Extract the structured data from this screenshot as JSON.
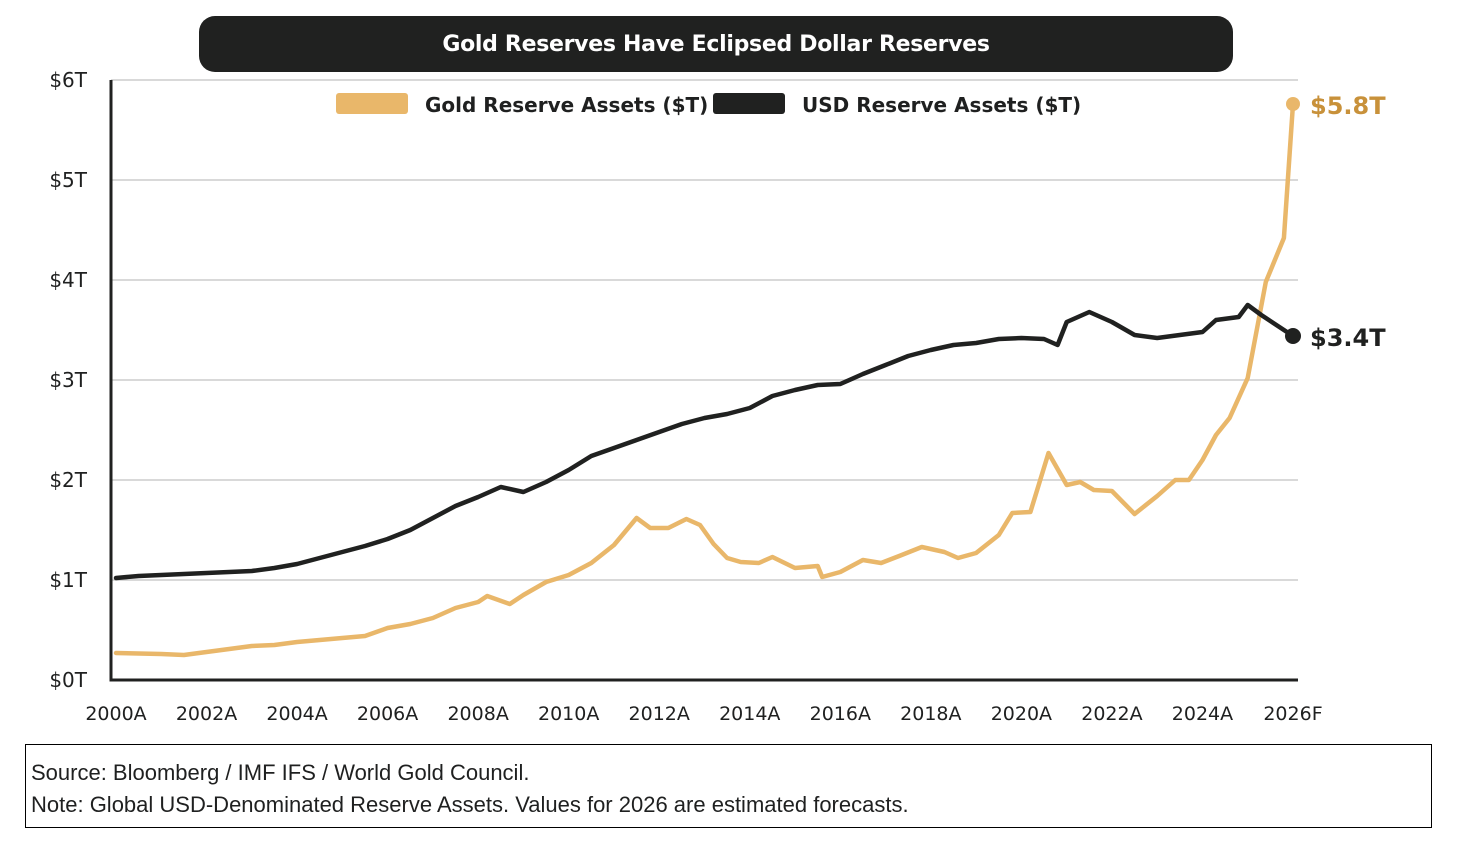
{
  "chart_data": {
    "type": "line",
    "title": "Gold Reserves Have Eclipsed Dollar Reserves",
    "xlabel": "",
    "ylabel": "",
    "xlim": [
      2000,
      2026
    ],
    "ylim": [
      0,
      6
    ],
    "grid": true,
    "legend_position": "top-center",
    "y_ticks": [
      {
        "value": 0,
        "label": "$0T"
      },
      {
        "value": 1,
        "label": "$1T"
      },
      {
        "value": 2,
        "label": "$2T"
      },
      {
        "value": 3,
        "label": "$3T"
      },
      {
        "value": 4,
        "label": "$4T"
      },
      {
        "value": 5,
        "label": "$5T"
      },
      {
        "value": 6,
        "label": "$6T"
      }
    ],
    "x_ticks": [
      {
        "value": 2000,
        "label": "2000A"
      },
      {
        "value": 2002,
        "label": "2002A"
      },
      {
        "value": 2004,
        "label": "2004A"
      },
      {
        "value": 2006,
        "label": "2006A"
      },
      {
        "value": 2008,
        "label": "2008A"
      },
      {
        "value": 2010,
        "label": "2010A"
      },
      {
        "value": 2012,
        "label": "2012A"
      },
      {
        "value": 2014,
        "label": "2014A"
      },
      {
        "value": 2016,
        "label": "2016A"
      },
      {
        "value": 2018,
        "label": "2018A"
      },
      {
        "value": 2020,
        "label": "2020A"
      },
      {
        "value": 2022,
        "label": "2022A"
      },
      {
        "value": 2024,
        "label": "2024A"
      },
      {
        "value": 2026,
        "label": "2026F"
      }
    ],
    "series": [
      {
        "name": "Gold Reserve Assets ($T)",
        "color": "#e9b76a",
        "end_label": "$5.8T",
        "end_label_color": "#c8913a",
        "x": [
          2000,
          2001,
          2001.5,
          2002,
          2002.5,
          2003,
          2003.5,
          2004,
          2004.5,
          2005,
          2005.5,
          2006,
          2006.5,
          2007,
          2007.5,
          2008,
          2008.2,
          2008.7,
          2009,
          2009.5,
          2010,
          2010.5,
          2011,
          2011.5,
          2011.8,
          2012.2,
          2012.6,
          2012.9,
          2013.2,
          2013.5,
          2013.8,
          2014.2,
          2014.5,
          2015,
          2015.5,
          2015.6,
          2016,
          2016.5,
          2016.9,
          2017.3,
          2017.8,
          2018.3,
          2018.6,
          2019,
          2019.5,
          2019.8,
          2020.2,
          2020.6,
          2021,
          2021.3,
          2021.6,
          2022,
          2022.5,
          2023,
          2023.4,
          2023.7,
          2024,
          2024.3,
          2024.6,
          2025,
          2025.4,
          2025.8,
          2026
        ],
        "values": [
          0.27,
          0.26,
          0.25,
          0.28,
          0.31,
          0.34,
          0.35,
          0.38,
          0.4,
          0.42,
          0.44,
          0.52,
          0.56,
          0.62,
          0.72,
          0.78,
          0.84,
          0.76,
          0.85,
          0.98,
          1.05,
          1.17,
          1.35,
          1.62,
          1.52,
          1.52,
          1.61,
          1.55,
          1.36,
          1.22,
          1.18,
          1.17,
          1.23,
          1.12,
          1.14,
          1.03,
          1.08,
          1.2,
          1.17,
          1.24,
          1.33,
          1.28,
          1.22,
          1.27,
          1.45,
          1.67,
          1.68,
          2.27,
          1.95,
          1.98,
          1.9,
          1.89,
          1.66,
          1.84,
          2.0,
          2.0,
          2.2,
          2.45,
          2.62,
          3.02,
          3.98,
          4.42,
          5.76
        ]
      },
      {
        "name": "USD Reserve Assets ($T)",
        "color": "#202120",
        "end_label": "$3.4T",
        "end_label_color": "#202120",
        "x": [
          2000,
          2000.5,
          2001,
          2001.5,
          2002,
          2002.5,
          2003,
          2003.5,
          2004,
          2004.5,
          2005,
          2005.5,
          2006,
          2006.5,
          2007,
          2007.5,
          2008,
          2008.5,
          2009,
          2009.5,
          2010,
          2010.5,
          2011,
          2011.5,
          2012,
          2012.5,
          2013,
          2013.5,
          2014,
          2014.5,
          2015,
          2015.5,
          2016,
          2016.5,
          2017,
          2017.5,
          2018,
          2018.5,
          2019,
          2019.5,
          2020,
          2020.5,
          2020.8,
          2021,
          2021.5,
          2022,
          2022.5,
          2023,
          2023.5,
          2024,
          2024.3,
          2024.8,
          2025,
          2025.3,
          2026
        ],
        "values": [
          1.02,
          1.04,
          1.05,
          1.06,
          1.07,
          1.08,
          1.09,
          1.12,
          1.16,
          1.22,
          1.28,
          1.34,
          1.41,
          1.5,
          1.62,
          1.74,
          1.83,
          1.93,
          1.88,
          1.98,
          2.1,
          2.24,
          2.32,
          2.4,
          2.48,
          2.56,
          2.62,
          2.66,
          2.72,
          2.84,
          2.9,
          2.95,
          2.96,
          3.06,
          3.15,
          3.24,
          3.3,
          3.35,
          3.37,
          3.41,
          3.42,
          3.41,
          3.35,
          3.58,
          3.68,
          3.58,
          3.45,
          3.42,
          3.45,
          3.48,
          3.6,
          3.63,
          3.75,
          3.65,
          3.44
        ]
      }
    ]
  },
  "footnote": {
    "source": "Source: Bloomberg / IMF IFS / World Gold Council.",
    "note": "Note: Global USD-Denominated Reserve Assets. Values for 2026 are estimated forecasts."
  }
}
